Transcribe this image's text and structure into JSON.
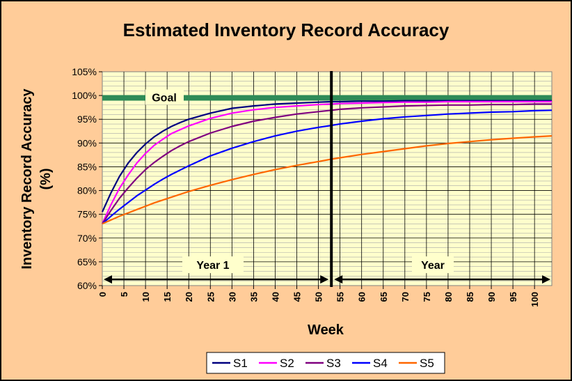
{
  "chart_data": {
    "type": "line",
    "title": "Estimated Inventory Record Accuracy",
    "xlabel": "Week",
    "ylabel_line1": "Inventory Record Accuracy",
    "ylabel_line2": "(%)",
    "xlim": [
      0,
      104
    ],
    "ylim": [
      60,
      105
    ],
    "x_ticks": [
      0,
      5,
      10,
      15,
      20,
      25,
      30,
      35,
      40,
      45,
      50,
      55,
      60,
      65,
      70,
      75,
      80,
      85,
      90,
      95,
      100
    ],
    "y_ticks": [
      "60%",
      "65%",
      "70%",
      "75%",
      "80%",
      "85%",
      "90%",
      "95%",
      "100%",
      "105%"
    ],
    "grid": true,
    "legend_position": "bottom",
    "goal": {
      "label": "Goal",
      "value": 99.5,
      "color": "#2E8B57"
    },
    "divider": {
      "x": 53
    },
    "annotations": [
      {
        "text": "Year 1",
        "from_x": 0,
        "to_x": 53
      },
      {
        "text": "Year",
        "from_x": 53,
        "to_x": 104
      }
    ],
    "x": [
      0,
      2,
      4,
      6,
      8,
      10,
      12,
      14,
      16,
      18,
      20,
      25,
      30,
      35,
      40,
      45,
      50,
      53,
      55,
      60,
      65,
      70,
      75,
      80,
      85,
      90,
      95,
      100,
      104
    ],
    "series": [
      {
        "name": "S1",
        "color": "#000080",
        "values": [
          75.5,
          79.5,
          83.0,
          85.8,
          88.0,
          89.8,
          91.3,
          92.5,
          93.5,
          94.3,
          95.0,
          96.3,
          97.3,
          97.8,
          98.2,
          98.4,
          98.6,
          98.7,
          98.7,
          98.8,
          98.8,
          98.9,
          98.9,
          98.9,
          98.9,
          98.9,
          98.9,
          98.9,
          98.9
        ]
      },
      {
        "name": "S2",
        "color": "#FF00FF",
        "values": [
          73.0,
          77.0,
          80.5,
          83.3,
          85.8,
          87.8,
          89.5,
          90.8,
          92.0,
          92.8,
          93.6,
          95.2,
          96.3,
          97.0,
          97.5,
          97.8,
          98.1,
          98.2,
          98.3,
          98.4,
          98.5,
          98.6,
          98.6,
          98.7,
          98.7,
          98.7,
          98.7,
          98.7,
          98.7
        ]
      },
      {
        "name": "S3",
        "color": "#800080",
        "values": [
          73.0,
          75.8,
          78.4,
          80.6,
          82.6,
          84.4,
          85.9,
          87.2,
          88.4,
          89.4,
          90.3,
          92.1,
          93.5,
          94.6,
          95.4,
          96.1,
          96.6,
          96.9,
          97.1,
          97.4,
          97.6,
          97.8,
          97.9,
          98.0,
          98.0,
          98.1,
          98.1,
          98.2,
          98.2
        ]
      },
      {
        "name": "S4",
        "color": "#0000FF",
        "values": [
          73.0,
          74.6,
          76.1,
          77.5,
          78.9,
          80.1,
          81.3,
          82.4,
          83.4,
          84.3,
          85.2,
          87.3,
          88.9,
          90.3,
          91.5,
          92.5,
          93.3,
          93.7,
          94.0,
          94.6,
          95.1,
          95.5,
          95.8,
          96.1,
          96.3,
          96.5,
          96.6,
          96.8,
          96.9
        ]
      },
      {
        "name": "S5",
        "color": "#FF6600",
        "values": [
          73.0,
          73.8,
          74.6,
          75.3,
          76.0,
          76.7,
          77.4,
          78.0,
          78.6,
          79.2,
          79.8,
          81.1,
          82.3,
          83.4,
          84.4,
          85.3,
          86.1,
          86.6,
          86.9,
          87.6,
          88.2,
          88.8,
          89.4,
          89.9,
          90.3,
          90.7,
          91.0,
          91.3,
          91.5
        ]
      }
    ]
  }
}
